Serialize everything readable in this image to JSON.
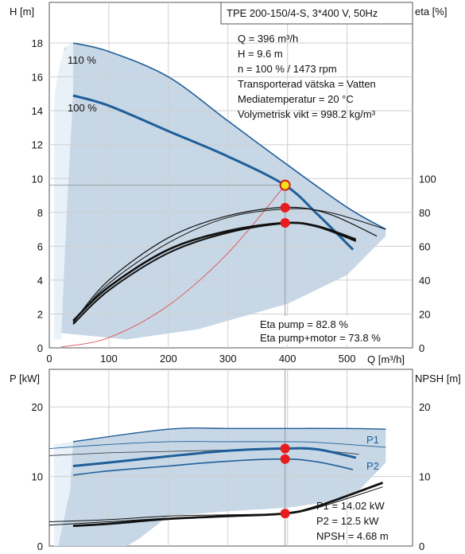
{
  "chart_data": [
    {
      "type": "line",
      "title": "TPE 200-150/4-S, 3*400 V, 50Hz",
      "xlabel": "Q [m³/h]",
      "ylabel": "H [m]",
      "ylabel2": "eta [%]",
      "x_ticks": [
        0,
        100,
        200,
        300,
        400,
        500
      ],
      "y_ticks": [
        0,
        2,
        4,
        6,
        8,
        10,
        12,
        14,
        16,
        18
      ],
      "y2_ticks": [
        0,
        20,
        40,
        60,
        80,
        100
      ],
      "xlim": [
        0,
        610
      ],
      "ylim": [
        0,
        20.4
      ],
      "y2lim": [
        0,
        204
      ],
      "grid": true,
      "info_lines": [
        "Q = 396 m³/h",
        "H = 9.6 m",
        "n = 100 % / 1473 rpm",
        "Transporterad vätska = Vatten",
        "Mediatemperatur = 20 °C",
        "Volymetrisk vikt = 998.2 kg/m³"
      ],
      "eta_lines": [
        "Eta pump = 82.8 %",
        "Eta pump+motor = 73.8 %"
      ],
      "operating_point": {
        "q": 396,
        "h": 9.6,
        "eta_pump": 82.8,
        "eta_total": 73.8
      },
      "series": [
        {
          "name": "110 %",
          "axis": "H",
          "x": [
            40,
            100,
            200,
            300,
            400,
            500,
            565
          ],
          "y": [
            18.0,
            17.5,
            16.0,
            13.4,
            10.8,
            8.3,
            7.0
          ]
        },
        {
          "name": "100 %",
          "axis": "H",
          "x": [
            40,
            100,
            200,
            300,
            396,
            450,
            510
          ],
          "y": [
            14.9,
            14.3,
            12.8,
            11.3,
            9.6,
            7.9,
            5.8
          ]
        },
        {
          "axis": "H",
          "x": [
            20,
            100,
            200,
            300,
            396
          ],
          "y": [
            0.05,
            0.6,
            2.5,
            5.6,
            9.6
          ]
        },
        {
          "axis": "eta",
          "x": [
            40,
            100,
            200,
            300,
            400,
            470,
            550
          ],
          "y": [
            15,
            40,
            65,
            78,
            83,
            79,
            66
          ]
        },
        {
          "axis": "eta",
          "x": [
            40,
            100,
            200,
            300,
            400,
            470,
            565
          ],
          "y": [
            15,
            38,
            62,
            77,
            82,
            80,
            70
          ]
        },
        {
          "axis": "eta",
          "x": [
            40,
            100,
            200,
            300,
            396,
            450,
            515
          ],
          "y": [
            16,
            36,
            58,
            69,
            73.8,
            71.8,
            64
          ]
        },
        {
          "axis": "eta",
          "x": [
            40,
            100,
            200,
            300,
            396,
            450,
            515
          ],
          "y": [
            14,
            34,
            56,
            68,
            73.5,
            71.5,
            63
          ]
        }
      ]
    },
    {
      "type": "line",
      "xlabel": "",
      "ylabel": "P [kW]",
      "ylabel2": "NPSH [m]",
      "y_ticks": [
        0,
        10,
        20
      ],
      "y2_ticks": [
        0,
        10,
        20
      ],
      "xlim": [
        0,
        610
      ],
      "ylim": [
        0,
        25.4
      ],
      "grid": true,
      "info_lines": [
        "P1 = 14.02 kW",
        "P2 = 12.5 kW",
        "NPSH = 4.68 m"
      ],
      "operating_point": {
        "p1": 14.02,
        "p2": 12.5,
        "npsh": 4.68
      },
      "series": [
        {
          "name": "P1",
          "x": [
            40,
            200,
            300,
            400,
            500,
            565
          ],
          "y": [
            15.0,
            16.8,
            16.9,
            16.9,
            16.9,
            16.8
          ]
        },
        {
          "name": "P2",
          "x": [
            0,
            100,
            200,
            300,
            396,
            450,
            565
          ],
          "y": [
            14.0,
            14.6,
            15.0,
            15.0,
            15.0,
            14.9,
            14.2
          ]
        },
        {
          "x": [
            0,
            100,
            200,
            300,
            396,
            450,
            520
          ],
          "y": [
            13.0,
            13.4,
            13.6,
            13.8,
            14.0,
            13.8,
            13.2
          ]
        },
        {
          "x": [
            40,
            100,
            200,
            300,
            396,
            450,
            515
          ],
          "y": [
            11.5,
            12.0,
            12.9,
            13.7,
            14.02,
            13.9,
            12.7
          ]
        },
        {
          "x": [
            40,
            100,
            200,
            300,
            396,
            450,
            510
          ],
          "y": [
            10.2,
            10.8,
            11.5,
            12.2,
            12.5,
            12.1,
            11.0
          ]
        },
        {
          "axis": "NPSH",
          "x": [
            0,
            100,
            200,
            300,
            396,
            450,
            560
          ],
          "y": [
            3.5,
            3.8,
            4.3,
            4.5,
            4.68,
            5.5,
            8.5
          ]
        },
        {
          "axis": "NPSH",
          "x": [
            40,
            100,
            200,
            300,
            396,
            450,
            560
          ],
          "y": [
            2.9,
            3.2,
            3.9,
            4.3,
            4.68,
            5.7,
            9.1
          ]
        },
        {
          "axis": "NPSH",
          "x": [
            0,
            100,
            200,
            300,
            396
          ],
          "y": [
            3.0,
            3.5,
            4.0,
            4.3,
            4.7
          ]
        }
      ]
    }
  ]
}
